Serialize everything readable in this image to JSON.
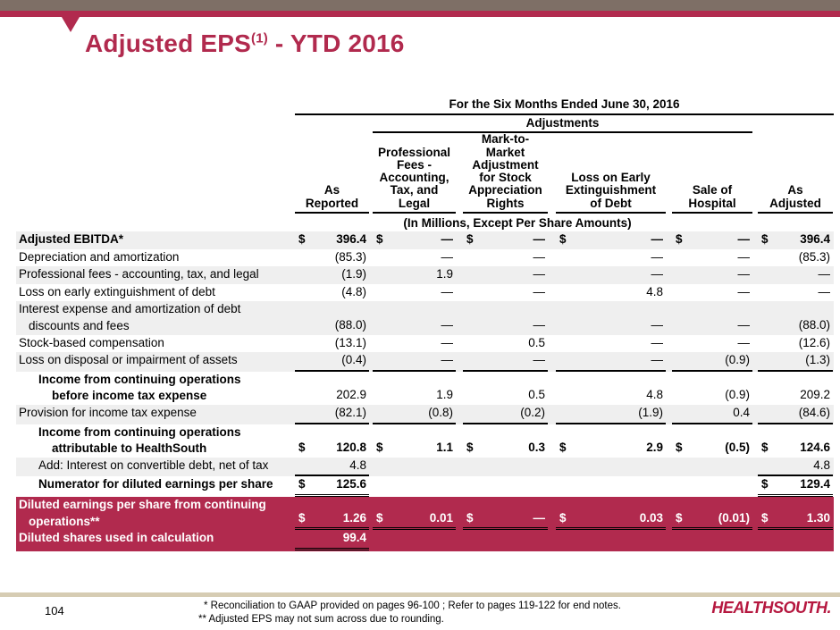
{
  "colors": {
    "crimson": "#b12a4e",
    "taupe": "#7e6f66",
    "tan": "#d6ccb3",
    "row_shade": "#efefef"
  },
  "title": {
    "main": "Adjusted EPS",
    "marker": "(1)",
    "rest": " - YTD 2016"
  },
  "table": {
    "period_header": "For the Six Months Ended June 30, 2016",
    "adjustments_header": "Adjustments",
    "units_note": "(In Millions, Except Per Share Amounts)",
    "columns": [
      "As\nReported",
      "Professional\nFees -\nAccounting,\nTax, and\nLegal",
      "Mark-to-\nMarket\nAdjustment\nfor Stock\nAppreciation\nRights",
      "Loss on Early\nExtinguishment\nof Debt",
      "Sale of\nHospital",
      "As\nAdjusted"
    ],
    "rows": [
      {
        "label_lines": [
          "Adjusted EBITDA*"
        ],
        "background": "shade",
        "indent": 0,
        "bold_label": true,
        "bold_values": true,
        "dollar_signs": [
          1,
          1,
          1,
          1,
          1,
          1
        ],
        "values": [
          "396.4",
          "—",
          "—",
          "—",
          "—",
          "396.4"
        ],
        "underlines": [
          "n",
          "n",
          "n",
          "n",
          "n",
          "n"
        ]
      },
      {
        "label_lines": [
          "Depreciation and amortization"
        ],
        "background": "white",
        "indent": 0,
        "bold_label": false,
        "bold_values": false,
        "dollar_signs": [
          0,
          0,
          0,
          0,
          0,
          0
        ],
        "values": [
          "(85.3)",
          "—",
          "—",
          "—",
          "—",
          "(85.3)"
        ],
        "underlines": [
          "n",
          "n",
          "n",
          "n",
          "n",
          "n"
        ]
      },
      {
        "label_lines": [
          "Professional fees - accounting, tax, and legal"
        ],
        "background": "shade",
        "indent": 0,
        "bold_label": false,
        "bold_values": false,
        "dollar_signs": [
          0,
          0,
          0,
          0,
          0,
          0
        ],
        "values": [
          "(1.9)",
          "1.9",
          "—",
          "—",
          "—",
          "—"
        ],
        "underlines": [
          "n",
          "n",
          "n",
          "n",
          "n",
          "n"
        ]
      },
      {
        "label_lines": [
          "Loss on early extinguishment of debt"
        ],
        "background": "white",
        "indent": 0,
        "bold_label": false,
        "bold_values": false,
        "dollar_signs": [
          0,
          0,
          0,
          0,
          0,
          0
        ],
        "values": [
          "(4.8)",
          "—",
          "—",
          "4.8",
          "—",
          "—"
        ],
        "underlines": [
          "n",
          "n",
          "n",
          "n",
          "n",
          "n"
        ]
      },
      {
        "label_lines": [
          "Interest expense and amortization of debt",
          "discounts and fees"
        ],
        "background": "shade",
        "indent": 0,
        "bold_label": false,
        "bold_values": false,
        "dollar_signs": [
          0,
          0,
          0,
          0,
          0,
          0
        ],
        "values": [
          "(88.0)",
          "—",
          "—",
          "—",
          "—",
          "(88.0)"
        ],
        "underlines": [
          "n",
          "n",
          "n",
          "n",
          "n",
          "n"
        ]
      },
      {
        "label_lines": [
          "Stock-based compensation"
        ],
        "background": "white",
        "indent": 0,
        "bold_label": false,
        "bold_values": false,
        "dollar_signs": [
          0,
          0,
          0,
          0,
          0,
          0
        ],
        "values": [
          "(13.1)",
          "—",
          "0.5",
          "—",
          "—",
          "(12.6)"
        ],
        "underlines": [
          "n",
          "n",
          "n",
          "n",
          "n",
          "n"
        ]
      },
      {
        "label_lines": [
          "Loss on disposal or impairment of assets"
        ],
        "background": "shade",
        "indent": 0,
        "bold_label": false,
        "bold_values": false,
        "dollar_signs": [
          0,
          0,
          0,
          0,
          0,
          0
        ],
        "values": [
          "(0.4)",
          "—",
          "—",
          "—",
          "(0.9)",
          "(1.3)"
        ],
        "underlines": [
          "s",
          "s",
          "s",
          "s",
          "s",
          "s"
        ]
      },
      {
        "label_lines": [
          "Income from continuing operations",
          "before income tax expense"
        ],
        "background": "white",
        "indent": 1,
        "bold_label": true,
        "bold_values": false,
        "dollar_signs": [
          0,
          0,
          0,
          0,
          0,
          0
        ],
        "values": [
          "202.9",
          "1.9",
          "0.5",
          "4.8",
          "(0.9)",
          "209.2"
        ],
        "underlines": [
          "n",
          "n",
          "n",
          "n",
          "n",
          "n"
        ]
      },
      {
        "label_lines": [
          "Provision for income tax expense"
        ],
        "background": "shade",
        "indent": 0,
        "bold_label": false,
        "bold_values": false,
        "dollar_signs": [
          0,
          0,
          0,
          0,
          0,
          0
        ],
        "values": [
          "(82.1)",
          "(0.8)",
          "(0.2)",
          "(1.9)",
          "0.4",
          "(84.6)"
        ],
        "underlines": [
          "s",
          "s",
          "s",
          "s",
          "s",
          "s"
        ]
      },
      {
        "label_lines": [
          "Income from continuing operations",
          "attributable to HealthSouth"
        ],
        "background": "white",
        "indent": 1,
        "bold_label": true,
        "bold_values": true,
        "dollar_signs": [
          1,
          1,
          1,
          1,
          1,
          1
        ],
        "values": [
          "120.8",
          "1.1",
          "0.3",
          "2.9",
          "(0.5)",
          "124.6"
        ],
        "underlines": [
          "n",
          "n",
          "n",
          "n",
          "n",
          "n"
        ]
      },
      {
        "label_lines": [
          "Add: Interest on convertible debt, net of tax"
        ],
        "background": "shade",
        "indent": 1,
        "bold_label": false,
        "bold_values": false,
        "dollar_signs": [
          0,
          0,
          0,
          0,
          0,
          0
        ],
        "values": [
          "4.8",
          "",
          "",
          "",
          "",
          "4.8"
        ],
        "underlines": [
          "s",
          "n",
          "n",
          "n",
          "n",
          "s"
        ]
      },
      {
        "label_lines": [
          "Numerator for diluted earnings per share"
        ],
        "background": "white",
        "indent": 1,
        "bold_label": true,
        "bold_values": true,
        "dollar_signs": [
          1,
          0,
          0,
          0,
          0,
          1
        ],
        "values": [
          "125.6",
          "",
          "",
          "",
          "",
          "129.4"
        ],
        "underlines": [
          "d",
          "n",
          "n",
          "n",
          "n",
          "d"
        ]
      },
      {
        "label_lines": [
          "Diluted earnings per share from continuing",
          "operations**"
        ],
        "background": "maroon",
        "indent": 0,
        "bold_label": true,
        "bold_values": true,
        "dollar_signs": [
          1,
          1,
          1,
          1,
          1,
          1
        ],
        "values": [
          "1.26",
          "0.01",
          "—",
          "0.03",
          "(0.01)",
          "1.30"
        ],
        "underlines": [
          "d",
          "d",
          "d",
          "d",
          "d",
          "d"
        ]
      },
      {
        "label_lines": [
          "Diluted shares used in calculation"
        ],
        "background": "maroon",
        "indent": 0,
        "bold_label": true,
        "bold_values": true,
        "dollar_signs": [
          0,
          0,
          0,
          0,
          0,
          0
        ],
        "values": [
          "99.4",
          "",
          "",
          "",
          "",
          ""
        ],
        "underlines": [
          "d",
          "n",
          "n",
          "n",
          "n",
          "n"
        ]
      }
    ]
  },
  "footer": {
    "page_number": "104",
    "footnotes": [
      "* Reconciliation to GAAP provided on pages 96-100 ; Refer to pages 119-122 for end notes.",
      "** Adjusted EPS may not sum across due to rounding."
    ],
    "logo_text": "HEALTHSOUTH."
  }
}
